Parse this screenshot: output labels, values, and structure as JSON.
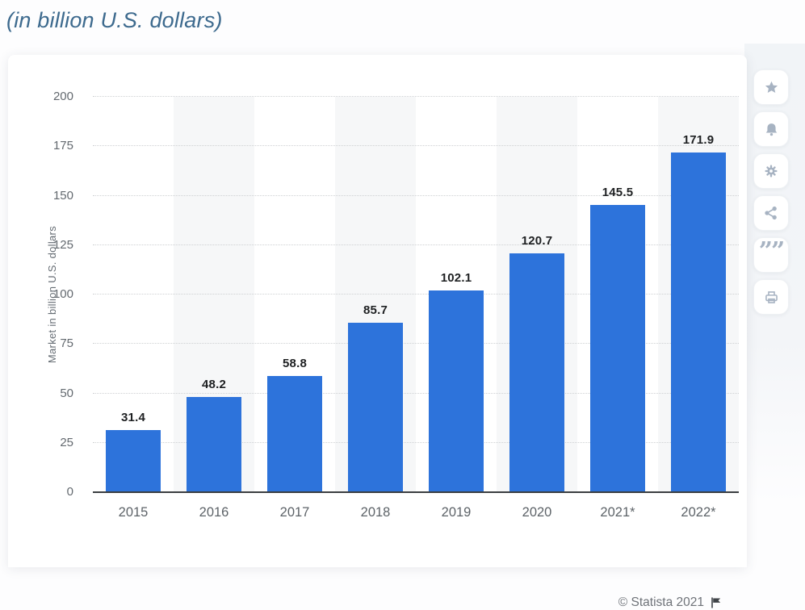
{
  "page": {
    "title": "(in billion U.S. dollars)"
  },
  "chart_data": {
    "type": "bar",
    "title": "(in billion U.S. dollars)",
    "categories": [
      "2015",
      "2016",
      "2017",
      "2018",
      "2019",
      "2020",
      "2021*",
      "2022*"
    ],
    "values": [
      31.4,
      48.2,
      58.8,
      85.7,
      102.1,
      120.7,
      145.5,
      171.9
    ],
    "value_labels": [
      "31.4",
      "48.2",
      "58.8",
      "85.7",
      "102.1",
      "120.7",
      "145.5",
      "171.9"
    ],
    "xlabel": "",
    "ylabel": "Market in billion U.S. dollars",
    "ylim": [
      0,
      200
    ],
    "yticks": [
      0,
      25,
      50,
      75,
      100,
      125,
      150,
      175,
      200
    ],
    "grid": "horizontal-dotted",
    "legend": "none",
    "bar_color": "#2d73db",
    "band_color": "#f6f7f8",
    "alternating_column_bands": true
  },
  "toolbar": {
    "buttons": [
      {
        "name": "favorite",
        "icon": "star-icon"
      },
      {
        "name": "alerts",
        "icon": "bell-icon"
      },
      {
        "name": "settings",
        "icon": "gear-icon"
      },
      {
        "name": "share",
        "icon": "share-icon"
      },
      {
        "name": "cite",
        "icon": "quote-icon"
      },
      {
        "name": "print",
        "icon": "printer-icon"
      }
    ]
  },
  "footer": {
    "copyright": "© Statista 2021",
    "flag_icon": "flag-icon"
  }
}
